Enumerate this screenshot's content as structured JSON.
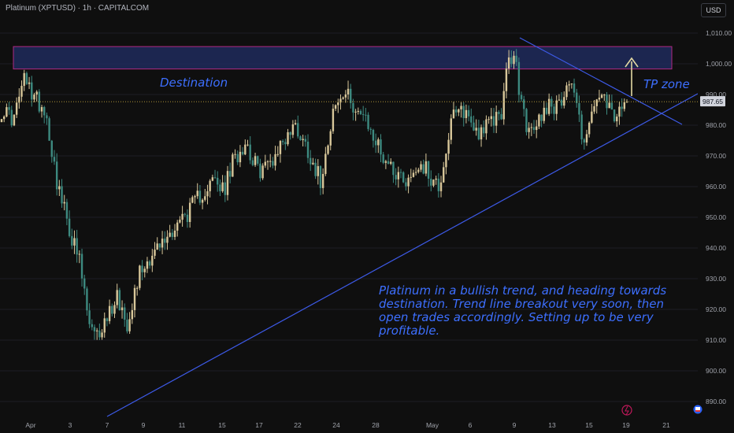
{
  "header": {
    "symbol_title": "Platinum (XPTUSD) · 1h · CAPITALCOM",
    "currency": "USD"
  },
  "chart_data": {
    "type": "candlestick",
    "ylim": [
      885,
      1013
    ],
    "y_ticks": [
      1010,
      1000,
      990,
      980,
      970,
      960,
      950,
      940,
      930,
      920,
      910,
      900,
      890
    ],
    "y_tick_labels": [
      "1,010.00",
      "1,000.00",
      "990.00",
      "980.00",
      "970.00",
      "960.00",
      "950.00",
      "940.00",
      "930.00",
      "920.00",
      "910.00",
      "900.00",
      "890.00"
    ],
    "x_ticks": [
      "Apr",
      "3",
      "7",
      "9",
      "11",
      "15",
      "17",
      "22",
      "24",
      "28",
      "May",
      "6",
      "9",
      "13",
      "15",
      "19",
      "21"
    ],
    "current_price": 987.65,
    "current_price_label": "987.65",
    "close_path": [
      [
        0,
        985
      ],
      [
        0.02,
        982
      ],
      [
        0.035,
        995
      ],
      [
        0.05,
        990
      ],
      [
        0.07,
        985
      ],
      [
        0.09,
        960
      ],
      [
        0.11,
        945
      ],
      [
        0.125,
        935
      ],
      [
        0.14,
        915
      ],
      [
        0.15,
        910
      ],
      [
        0.17,
        918
      ],
      [
        0.185,
        925
      ],
      [
        0.2,
        915
      ],
      [
        0.22,
        932
      ],
      [
        0.24,
        938
      ],
      [
        0.26,
        942
      ],
      [
        0.28,
        948
      ],
      [
        0.3,
        952
      ],
      [
        0.32,
        958
      ],
      [
        0.34,
        962
      ],
      [
        0.355,
        958
      ],
      [
        0.37,
        968
      ],
      [
        0.39,
        975
      ],
      [
        0.41,
        965
      ],
      [
        0.43,
        968
      ],
      [
        0.45,
        975
      ],
      [
        0.47,
        980
      ],
      [
        0.49,
        972
      ],
      [
        0.51,
        962
      ],
      [
        0.53,
        985
      ],
      [
        0.55,
        990
      ],
      [
        0.57,
        985
      ],
      [
        0.59,
        978
      ],
      [
        0.61,
        970
      ],
      [
        0.63,
        965
      ],
      [
        0.65,
        962
      ],
      [
        0.67,
        968
      ],
      [
        0.69,
        962
      ],
      [
        0.7,
        960
      ],
      [
        0.72,
        982
      ],
      [
        0.74,
        985
      ],
      [
        0.76,
        978
      ],
      [
        0.78,
        980
      ],
      [
        0.8,
        985
      ],
      [
        0.81,
        1000
      ],
      [
        0.82,
        1003
      ],
      [
        0.83,
        988
      ],
      [
        0.845,
        976
      ],
      [
        0.86,
        982
      ],
      [
        0.875,
        988
      ],
      [
        0.89,
        985
      ],
      [
        0.905,
        995
      ],
      [
        0.915,
        992
      ],
      [
        0.93,
        975
      ],
      [
        0.94,
        980
      ],
      [
        0.955,
        990
      ],
      [
        0.97,
        985
      ],
      [
        0.985,
        982
      ],
      [
        1,
        987.65
      ]
    ],
    "annotations": {
      "destination_label": "Destination",
      "tp_label": "TP zone",
      "note": "Platinum in a bullish trend, and heading towards destination. Trend line breakout very soon, then open trades accordingly. Setting up to be very profitable."
    },
    "colors": {
      "up": "#d8c79a",
      "down": "#3d8a80",
      "trendline": "#3d5ae8",
      "box_border": "#b02a82",
      "box_fill": "#1e2a5c",
      "arrow": "#e3d9a3",
      "text_blue": "#3d6fff",
      "price_line": "#c6a83f"
    }
  },
  "bottom_icons": [
    "lightning-icon",
    "flag-icon"
  ]
}
